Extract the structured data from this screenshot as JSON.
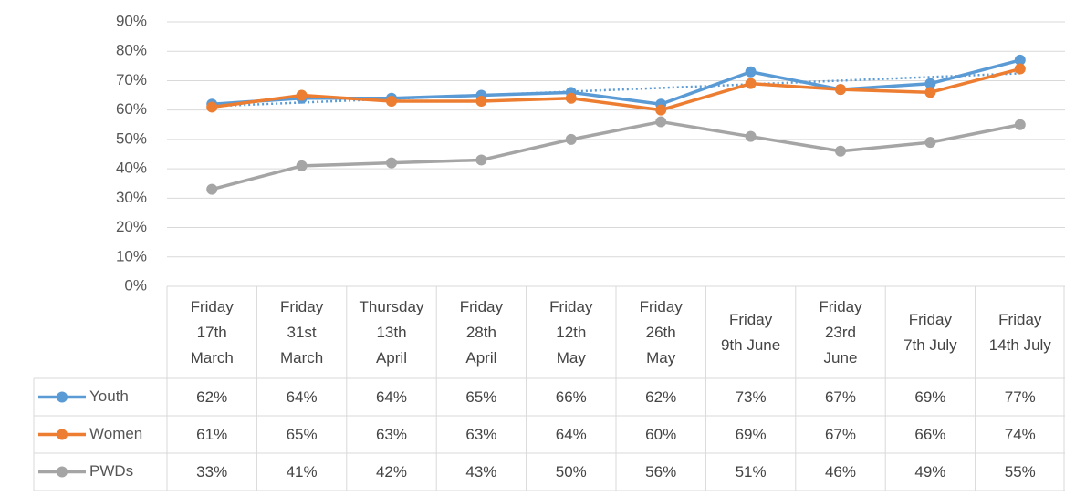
{
  "chart_data": {
    "type": "line",
    "categories": [
      "Friday\n17th\nMarch",
      "Friday\n31st\nMarch",
      "Thursday\n13th\nApril",
      "Friday\n28th\nApril",
      "Friday\n12th\nMay",
      "Friday\n26th\nMay",
      "Friday\n9th June",
      "Friday\n23rd\nJune",
      "Friday\n7th July",
      "Friday\n14th July"
    ],
    "series": [
      {
        "name": "Youth",
        "color": "#5b9bd5",
        "values": [
          62,
          64,
          64,
          65,
          66,
          62,
          73,
          67,
          69,
          77
        ],
        "value_labels": [
          "62%",
          "64%",
          "64%",
          "65%",
          "66%",
          "62%",
          "73%",
          "67%",
          "69%",
          "77%"
        ],
        "trendline": true
      },
      {
        "name": "Women",
        "color": "#ed7d31",
        "values": [
          61,
          65,
          63,
          63,
          64,
          60,
          69,
          67,
          66,
          74
        ],
        "value_labels": [
          "61%",
          "65%",
          "63%",
          "63%",
          "64%",
          "60%",
          "69%",
          "67%",
          "66%",
          "74%"
        ]
      },
      {
        "name": "PWDs",
        "color": "#a5a5a5",
        "values": [
          33,
          41,
          42,
          43,
          50,
          56,
          51,
          46,
          49,
          55
        ],
        "value_labels": [
          "33%",
          "41%",
          "42%",
          "43%",
          "50%",
          "56%",
          "51%",
          "46%",
          "49%",
          "55%"
        ]
      }
    ],
    "ylim": [
      0,
      90
    ],
    "yticks": [
      {
        "value": 0,
        "label": "0%"
      },
      {
        "value": 10,
        "label": "10%"
      },
      {
        "value": 20,
        "label": "20%"
      },
      {
        "value": 30,
        "label": "30%"
      },
      {
        "value": 40,
        "label": "40%"
      },
      {
        "value": 50,
        "label": "50%"
      },
      {
        "value": 60,
        "label": "60%"
      },
      {
        "value": 70,
        "label": "70%"
      },
      {
        "value": 80,
        "label": "80%"
      },
      {
        "value": 90,
        "label": "90%"
      }
    ],
    "grid": true,
    "data_table": true
  }
}
